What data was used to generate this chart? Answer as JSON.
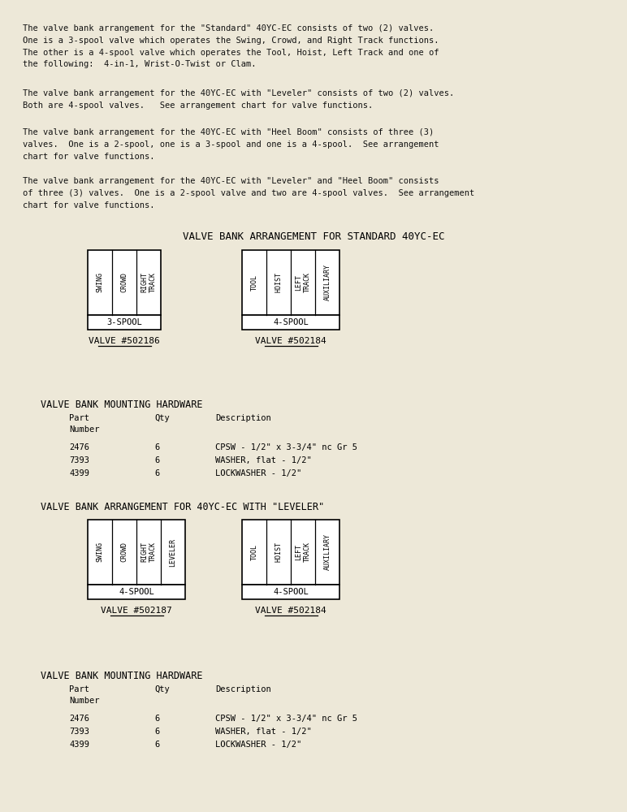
{
  "bg_color": "#ede8d8",
  "text_color": "#111111",
  "paragraphs": [
    "The valve bank arrangement for the \"Standard\" 40YC-EC consists of two (2) valves.\nOne is a 3-spool valve which operates the Swing, Crowd, and Right Track functions.\nThe other is a 4-spool valve which operates the Tool, Hoist, Left Track and one of\nthe following:  4-in-1, Wrist-O-Twist or Clam.",
    "The valve bank arrangement for the 40YC-EC with \"Leveler\" consists of two (2) valves.\nBoth are 4-spool valves.   See arrangement chart for valve functions.",
    "The valve bank arrangement for the 40YC-EC with \"Heel Boom\" consists of three (3)\nvalves.  One is a 2-spool, one is a 3-spool and one is a 4-spool.  See arrangement\nchart for valve functions.",
    "The valve bank arrangement for the 40YC-EC with \"Leveler\" and \"Heel Boom\" consists\nof three (3) valves.  One is a 2-spool valve and two are 4-spool valves.  See arrangement\nchart for valve functions."
  ],
  "section1_title": "VALVE BANK ARRANGEMENT FOR STANDARD 40YC-EC",
  "valve1a_labels": [
    "SWING",
    "CROWD",
    "RIGHT\nTRACK"
  ],
  "valve1a_spool": "3-SPOOL",
  "valve1a_number": "VALVE #502186",
  "valve1b_labels": [
    "TOOL",
    "HOIST",
    "LEFT\nTRACK",
    "AUXILIARY"
  ],
  "valve1b_spool": "4-SPOOL",
  "valve1b_number": "VALVE #502184",
  "hardware1_title": "VALVE BANK MOUNTING HARDWARE",
  "hardware_parts": [
    [
      "2476",
      "6",
      "CPSW - 1/2\" x 3-3/4\" nc Gr 5"
    ],
    [
      "7393",
      "6",
      "WASHER, flat - 1/2\""
    ],
    [
      "4399",
      "6",
      "LOCKWASHER - 1/2\""
    ]
  ],
  "section2_title": "VALVE BANK ARRANGEMENT FOR 40YC-EC WITH \"LEVELER\"",
  "valve2a_labels": [
    "SWING",
    "CROWD",
    "RIGHT\nTRACK",
    "LEVELER"
  ],
  "valve2a_spool": "4-SPOOL",
  "valve2a_number": "VALVE #502187",
  "valve2b_labels": [
    "TOOL",
    "HOIST",
    "LEFT\nTRACK",
    "AUXILIARY"
  ],
  "valve2b_spool": "4-SPOOL",
  "valve2b_number": "VALVE #502184",
  "hardware2_title": "VALVE BANK MOUNTING HARDWARE",
  "hardware2_parts": [
    [
      "2476",
      "6",
      "CPSW - 1/2\" x 3-3/4\" nc Gr 5"
    ],
    [
      "7393",
      "6",
      "WASHER, flat - 1/2\""
    ],
    [
      "4399",
      "6",
      "LOCKWASHER - 1/2\""
    ]
  ]
}
